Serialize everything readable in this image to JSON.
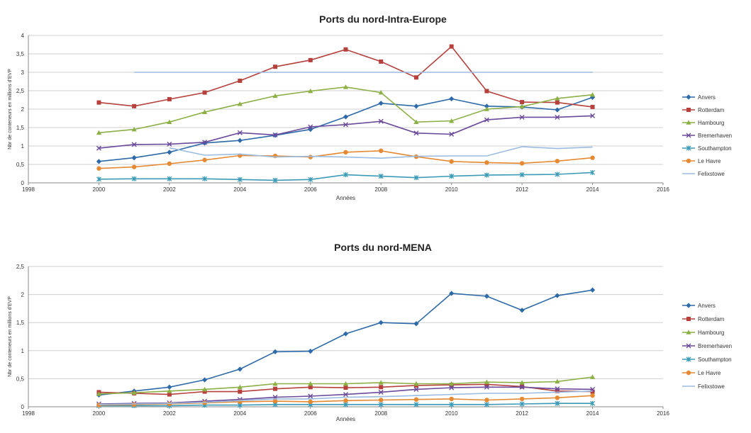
{
  "chart_data": [
    {
      "type": "line",
      "title": "Ports du nord-Intra-Europe",
      "xlabel": "Années",
      "ylabel": "Nbr de conteneurs en millions d'EVP",
      "xlim": [
        1998,
        2016
      ],
      "ylim": [
        0,
        4
      ],
      "x_ticks": [
        "1998",
        "2000",
        "2002",
        "2004",
        "2006",
        "2008",
        "2010",
        "2012",
        "2014",
        "2016"
      ],
      "y_ticks": [
        "0",
        "0,5",
        "1",
        "1,5",
        "2",
        "2,5",
        "3",
        "3,5",
        "4"
      ],
      "grid": true,
      "legend": "right",
      "x": [
        2000,
        2001,
        2002,
        2003,
        2004,
        2005,
        2006,
        2007,
        2008,
        2009,
        2010,
        2011,
        2012,
        2013,
        2014
      ],
      "series": [
        {
          "name": "Anvers",
          "color": "#2e6aa8",
          "marker": "diamond",
          "values": [
            0.58,
            0.68,
            0.83,
            1.08,
            1.15,
            1.29,
            1.45,
            1.79,
            2.16,
            2.08,
            2.28,
            2.08,
            2.06,
            1.98,
            2.32
          ]
        },
        {
          "name": "Rotterdam",
          "color": "#b5403c",
          "marker": "square",
          "values": [
            2.18,
            2.08,
            2.27,
            2.45,
            2.77,
            3.15,
            3.33,
            3.62,
            3.29,
            2.86,
            3.7,
            2.49,
            2.19,
            2.18,
            2.06
          ]
        },
        {
          "name": "Hambourg",
          "color": "#8cb045",
          "marker": "triangle",
          "values": [
            1.36,
            1.45,
            1.65,
            1.92,
            2.14,
            2.36,
            2.49,
            2.6,
            2.45,
            1.65,
            1.68,
            2.0,
            2.07,
            2.29,
            2.39
          ]
        },
        {
          "name": "Bremerhaven",
          "color": "#6a4a9a",
          "marker": "x",
          "values": [
            0.94,
            1.04,
            1.05,
            1.1,
            1.36,
            1.3,
            1.52,
            1.58,
            1.67,
            1.35,
            1.32,
            1.71,
            1.78,
            1.78,
            1.82
          ]
        },
        {
          "name": "Southampton",
          "color": "#3b9bb7",
          "marker": "star",
          "values": [
            0.1,
            0.11,
            0.11,
            0.11,
            0.09,
            0.07,
            0.09,
            0.22,
            0.18,
            0.14,
            0.18,
            0.21,
            0.22,
            0.23,
            0.28
          ]
        },
        {
          "name": "Le Havre",
          "color": "#e58a32",
          "marker": "circle",
          "values": [
            0.39,
            0.43,
            0.52,
            0.62,
            0.74,
            0.73,
            0.7,
            0.83,
            0.87,
            0.71,
            0.58,
            0.55,
            0.53,
            0.59,
            0.68
          ]
        },
        {
          "name": "Felixstowe",
          "color": "#9bbbe0",
          "marker": "none",
          "values": [
            null,
            3.0,
            3.0,
            3.0,
            3.0,
            3.0,
            3.0,
            3.0,
            3.0,
            3.0,
            3.0,
            3.0,
            3.0,
            3.0,
            3.0
          ]
        },
        {
          "name": "",
          "color": "#9bbbe0",
          "marker": "none",
          "values": [
            null,
            null,
            0.95,
            0.75,
            0.78,
            0.7,
            0.72,
            0.7,
            0.67,
            0.72,
            0.73,
            0.73,
            0.98,
            0.93,
            0.97
          ]
        }
      ]
    },
    {
      "type": "line",
      "title": "Ports du nord-MENA",
      "xlabel": "Années",
      "ylabel": "Nbr de conteneurs en millions d'EVP",
      "xlim": [
        1998,
        2016
      ],
      "ylim": [
        0,
        2.5
      ],
      "x_ticks": [
        "1998",
        "2000",
        "2002",
        "2004",
        "2006",
        "2008",
        "2010",
        "2012",
        "2014",
        "2016"
      ],
      "y_ticks": [
        "0",
        "0,5",
        "1",
        "1,5",
        "2",
        "2,5"
      ],
      "grid": true,
      "legend": "right",
      "x": [
        2000,
        2001,
        2002,
        2003,
        2004,
        2005,
        2006,
        2007,
        2008,
        2009,
        2010,
        2011,
        2012,
        2013,
        2014
      ],
      "series": [
        {
          "name": "Anvers",
          "color": "#2e6aa8",
          "marker": "diamond",
          "values": [
            0.21,
            0.28,
            0.35,
            0.48,
            0.67,
            0.98,
            0.99,
            1.3,
            1.5,
            1.48,
            2.02,
            1.97,
            1.72,
            1.98,
            2.08
          ]
        },
        {
          "name": "Rotterdam",
          "color": "#b5403c",
          "marker": "square",
          "values": [
            0.26,
            0.24,
            0.22,
            0.27,
            0.27,
            0.32,
            0.35,
            0.34,
            0.35,
            0.38,
            0.39,
            0.4,
            0.36,
            0.28,
            0.27
          ]
        },
        {
          "name": "Hambourg",
          "color": "#8cb045",
          "marker": "triangle",
          "values": [
            0.23,
            0.25,
            0.28,
            0.31,
            0.35,
            0.41,
            0.41,
            0.41,
            0.43,
            0.41,
            0.41,
            0.44,
            0.43,
            0.45,
            0.53
          ]
        },
        {
          "name": "Bremerhaven",
          "color": "#6a4a9a",
          "marker": "x",
          "values": [
            0.05,
            0.06,
            0.07,
            0.1,
            0.13,
            0.17,
            0.19,
            0.22,
            0.26,
            0.31,
            0.34,
            0.35,
            0.35,
            0.32,
            0.31
          ]
        },
        {
          "name": "Southampton",
          "color": "#3b9bb7",
          "marker": "star",
          "values": [
            0.02,
            0.02,
            0.02,
            0.03,
            0.03,
            0.04,
            0.04,
            0.04,
            0.04,
            0.04,
            0.04,
            0.04,
            0.05,
            0.06,
            0.06
          ]
        },
        {
          "name": "Le Havre",
          "color": "#e58a32",
          "marker": "circle",
          "values": [
            0.03,
            0.04,
            0.05,
            0.07,
            0.09,
            0.1,
            0.09,
            0.11,
            0.12,
            0.13,
            0.14,
            0.12,
            0.14,
            0.16,
            0.2
          ]
        },
        {
          "name": "Felixstowe",
          "color": "#9bbbe0",
          "marker": "none",
          "values": [
            0.04,
            0.05,
            0.06,
            0.08,
            0.11,
            0.14,
            0.14,
            0.17,
            0.18,
            0.2,
            0.22,
            0.24,
            0.24,
            0.26,
            0.28
          ]
        }
      ]
    }
  ]
}
